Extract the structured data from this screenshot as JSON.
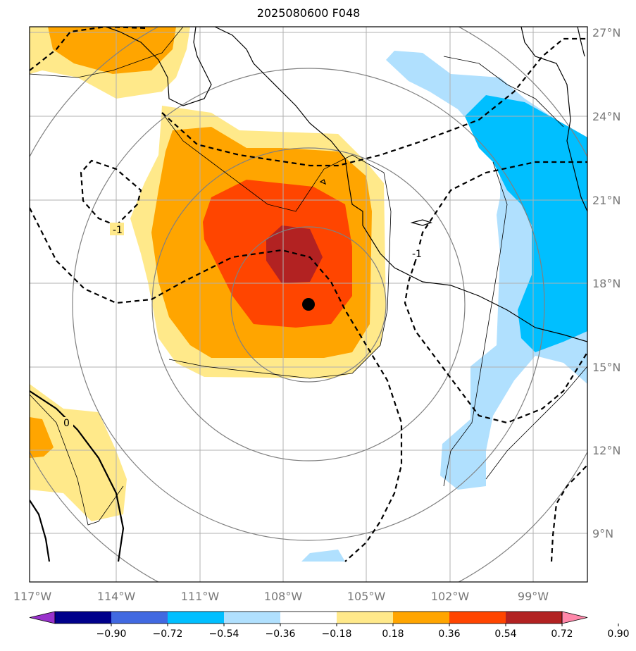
{
  "title": "2025080600 F048",
  "map": {
    "lon_labels": [
      "117°W",
      "114°W",
      "111°W",
      "108°W",
      "105°W",
      "102°W",
      "99°W"
    ],
    "lat_labels": [
      "27°N",
      "24°N",
      "21°N",
      "18°N",
      "15°N",
      "12°N",
      "9°N"
    ],
    "contour_labels": [
      "-1",
      "-1",
      "0"
    ],
    "storm_marker": "storm-center"
  },
  "colorbar": {
    "levels": [
      "−0.90",
      "−0.72",
      "−0.54",
      "−0.36",
      "−0.18",
      "0.18",
      "0.36",
      "0.54",
      "0.72",
      "0.90"
    ],
    "colors": [
      "#9932cc",
      "#00008b",
      "#4169e1",
      "#00bfff",
      "#b0e0fe",
      "#ffffff",
      "#ffe98a",
      "#ffa500",
      "#ff4500",
      "#b22222",
      "#ff88aa"
    ]
  }
}
